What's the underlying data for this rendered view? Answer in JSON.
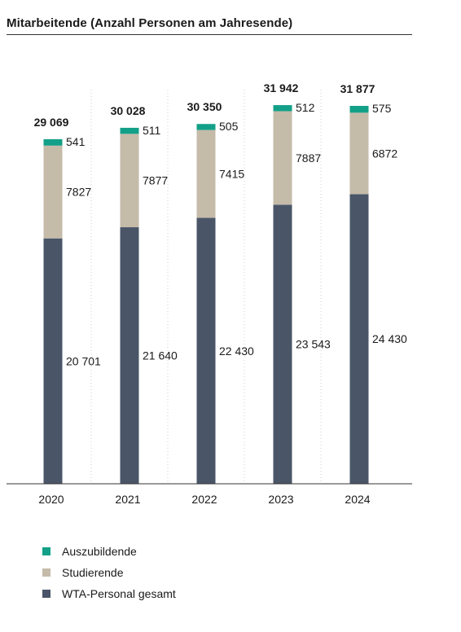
{
  "title": "Mitarbeitende (Anzahl Personen am Jahresende)",
  "colors": {
    "Auszubildende": "#13a088",
    "Studierende": "#c5bba9",
    "WTA": "#4a5668",
    "axis": "#333333",
    "grid": "#cfcfcf"
  },
  "chart_data": {
    "type": "bar",
    "stacked": true,
    "title": "Mitarbeitende (Anzahl Personen am Jahresende)",
    "xlabel": "",
    "ylabel": "",
    "ylim": [
      0,
      36000
    ],
    "grid": true,
    "legend_position": "bottom-left",
    "categories": [
      "2020",
      "2021",
      "2022",
      "2023",
      "2024"
    ],
    "totals": [
      "29 069",
      "30 028",
      "30 350",
      "31 942",
      "31 877"
    ],
    "series": [
      {
        "name": "WTA-Personal gesamt",
        "values": [
          20701,
          21640,
          22430,
          23543,
          24430
        ],
        "labels": [
          "20 701",
          "21 640",
          "22 430",
          "23 543",
          "24 430"
        ]
      },
      {
        "name": "Studierende",
        "values": [
          7827,
          7877,
          7415,
          7887,
          6872
        ],
        "labels": [
          "7827",
          "7877",
          "7415",
          "7887",
          "6872"
        ]
      },
      {
        "name": "Auszubildende",
        "values": [
          541,
          511,
          505,
          512,
          575
        ],
        "labels": [
          "541",
          "511",
          "505",
          "512",
          "575"
        ]
      }
    ]
  },
  "legend": [
    {
      "label": "Auszubildende",
      "color": "#13a088"
    },
    {
      "label": "Studierende",
      "color": "#c5bba9"
    },
    {
      "label": "WTA-Personal gesamt",
      "color": "#4a5668"
    }
  ]
}
